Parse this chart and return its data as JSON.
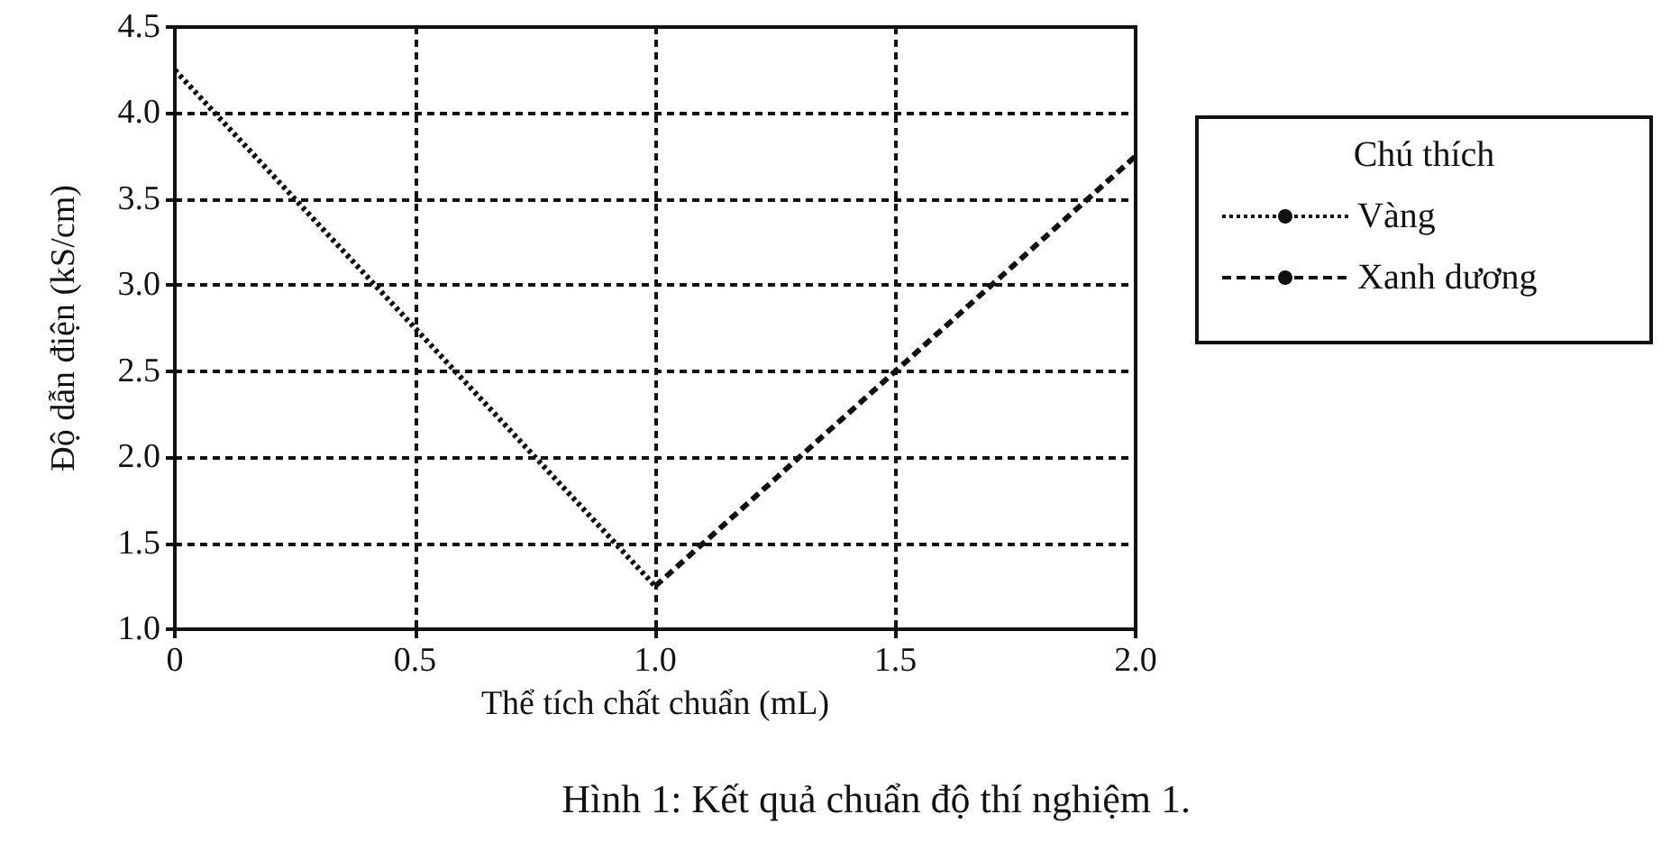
{
  "chart_data": {
    "type": "line",
    "xlabel": "Thể tích chất chuẩn (mL)",
    "ylabel": "Độ dẫn điện (kS/cm)",
    "legend_title": "Chú thích",
    "annotations": [
      "Hình 1: Kết quả chuẩn độ thí nghiệm 1."
    ],
    "series": [
      {
        "name": "Vàng",
        "color": "#111111",
        "line_style": "dotted",
        "x": [
          0,
          1.0
        ],
        "values": [
          4.25,
          1.25
        ]
      },
      {
        "name": "Xanh dương",
        "color": "#111111",
        "line_style": "dashed",
        "x": [
          1.0,
          2.0
        ],
        "values": [
          1.25,
          3.75
        ]
      }
    ],
    "xlim": [
      0,
      2.0
    ],
    "xticks": [
      0,
      0.5,
      {
        "value": 1.0,
        "label": "1.0"
      },
      1.5,
      {
        "value": 2.0,
        "label": "2.0"
      }
    ],
    "ylim": [
      1.0,
      4.5
    ],
    "yticks": [
      {
        "value": 1.0,
        "label": "1.0"
      },
      1.5,
      {
        "value": 2.0,
        "label": "2.0"
      },
      2.5,
      {
        "value": 3.0,
        "label": "3.0"
      },
      3.5,
      {
        "value": 4.0,
        "label": "4.0"
      },
      4.5
    ],
    "grid": true,
    "legend": "right",
    "marker": "none"
  }
}
